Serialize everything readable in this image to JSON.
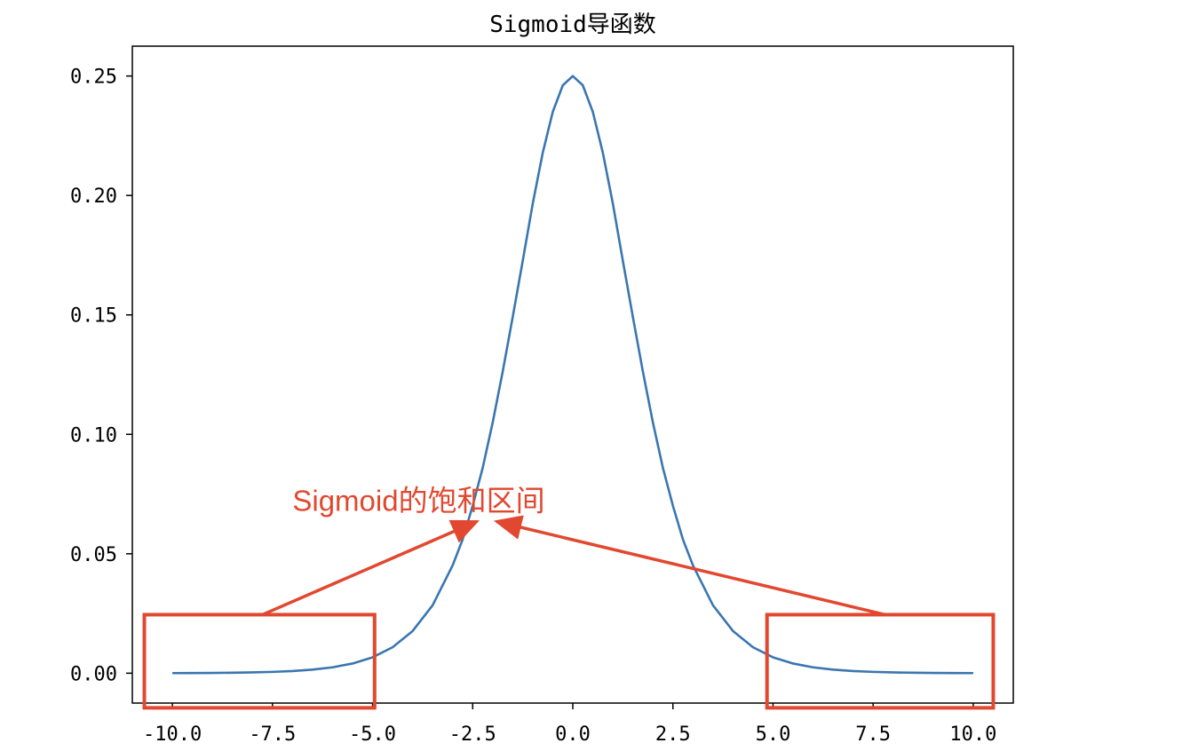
{
  "chart_data": {
    "type": "line",
    "title": "Sigmoid导函数",
    "xlabel": "",
    "ylabel": "",
    "xlim": [
      -11.0,
      11.0
    ],
    "ylim": [
      -0.0125,
      0.2625
    ],
    "xticks": [
      -10.0,
      -7.5,
      -5.0,
      -2.5,
      0.0,
      2.5,
      5.0,
      7.5,
      10.0
    ],
    "xtick_labels": [
      "-10.0",
      "-7.5",
      "-5.0",
      "-2.5",
      "0.0",
      "2.5",
      "5.0",
      "7.5",
      "10.0"
    ],
    "yticks": [
      0.0,
      0.05,
      0.1,
      0.15,
      0.2,
      0.25
    ],
    "ytick_labels": [
      "0.00",
      "0.05",
      "0.10",
      "0.15",
      "0.20",
      "0.25"
    ],
    "grid": false,
    "series": [
      {
        "color": "#3a76b0",
        "x": [
          -10.0,
          -9.5,
          -9.0,
          -8.5,
          -8.0,
          -7.5,
          -7.0,
          -6.5,
          -6.0,
          -5.5,
          -5.0,
          -4.5,
          -4.0,
          -3.5,
          -3.0,
          -2.75,
          -2.5,
          -2.25,
          -2.0,
          -1.75,
          -1.5,
          -1.25,
          -1.0,
          -0.75,
          -0.5,
          -0.25,
          0.0,
          0.25,
          0.5,
          0.75,
          1.0,
          1.25,
          1.5,
          1.75,
          2.0,
          2.25,
          2.5,
          2.75,
          3.0,
          3.5,
          4.0,
          4.5,
          5.0,
          5.5,
          6.0,
          6.5,
          7.0,
          7.5,
          8.0,
          8.5,
          9.0,
          9.5,
          10.0
        ],
        "y": [
          4.5e-05,
          7.5e-05,
          0.000123,
          0.000203,
          0.000335,
          0.000553,
          0.00091,
          0.001499,
          0.002467,
          0.004054,
          0.006648,
          0.010866,
          0.017663,
          0.028453,
          0.045177,
          0.055997,
          0.070104,
          0.085979,
          0.104994,
          0.126306,
          0.149146,
          0.172658,
          0.196612,
          0.217895,
          0.235004,
          0.246108,
          0.25,
          0.246108,
          0.235004,
          0.217895,
          0.196612,
          0.172658,
          0.149146,
          0.126306,
          0.104994,
          0.085979,
          0.070104,
          0.055997,
          0.045177,
          0.028453,
          0.017663,
          0.010866,
          0.006648,
          0.004054,
          0.002467,
          0.001499,
          0.00091,
          0.000553,
          0.000335,
          0.000203,
          0.000123,
          7.5e-05,
          4.5e-05
        ]
      }
    ],
    "annotations": [
      {
        "text": "Sigmoid的饱和区间",
        "color": "#e2472f",
        "text_at": [
          -7.0,
          0.068
        ],
        "boxes": [
          {
            "x_range": [
              -10.7,
              -4.95
            ],
            "y_range": [
              -0.0145,
              0.0245
            ]
          },
          {
            "x_range": [
              4.85,
              10.5
            ],
            "y_range": [
              -0.0145,
              0.0245
            ]
          }
        ],
        "arrows": [
          {
            "from": [
              -7.75,
              0.0245
            ],
            "to": [
              -2.4,
              0.0635
            ]
          },
          {
            "from": [
              7.8,
              0.0245
            ],
            "to": [
              -1.9,
              0.0635
            ]
          }
        ]
      }
    ]
  }
}
